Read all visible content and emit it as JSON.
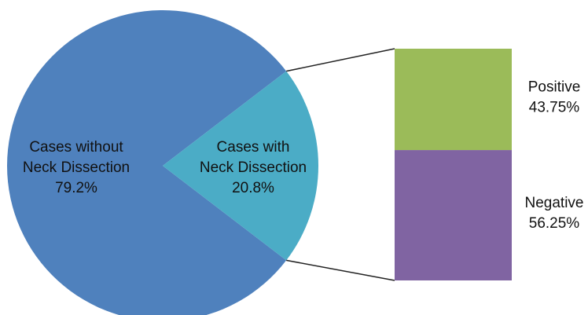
{
  "chart_data": {
    "type": "bar-of-pie",
    "pie": {
      "slices": [
        {
          "label_lines": [
            "Cases without",
            "Neck Dissection"
          ],
          "value": 79.2,
          "value_label": "79.2%",
          "color": "#4f81bd"
        },
        {
          "label_lines": [
            "Cases with",
            "Neck Dissection"
          ],
          "value": 20.8,
          "value_label": "20.8%",
          "color": "#4bacc6"
        }
      ]
    },
    "bar": {
      "segments": [
        {
          "label": "Positive",
          "value": 43.75,
          "value_label": "43.75%",
          "color": "#9bbb59"
        },
        {
          "label": "Negative",
          "value": 56.25,
          "value_label": "56.25%",
          "color": "#8064a2"
        }
      ]
    },
    "connector_color": "#222222"
  }
}
